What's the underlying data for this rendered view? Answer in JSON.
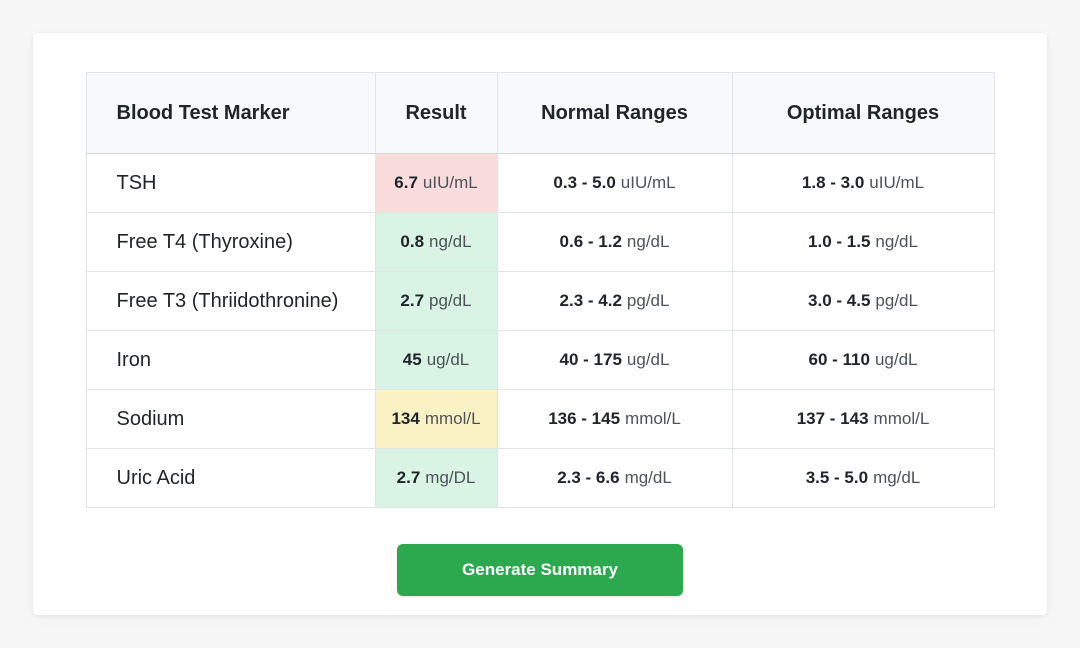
{
  "colors": {
    "page_background": "#f7f7f8",
    "card_background": "#ffffff",
    "header_background": "#f8f9fa",
    "accent_green": "#2ca84f",
    "result_high_bg": "#fbdcdc",
    "result_normal_bg": "#d9f4e4",
    "result_low_bg": "#faf2c5"
  },
  "table": {
    "headers": {
      "marker": "Blood Test Marker",
      "result": "Result",
      "normal": "Normal Ranges",
      "optimal": "Optimal Ranges"
    },
    "rows": [
      {
        "marker": "TSH",
        "result_value": "6.7",
        "result_unit": "uIU/mL",
        "status": "high",
        "normal_value": "0.3 - 5.0",
        "normal_unit": "uIU/mL",
        "optimal_value": "1.8 - 3.0",
        "optimal_unit": "uIU/mL"
      },
      {
        "marker": "Free T4 (Thyroxine)",
        "result_value": "0.8",
        "result_unit": "ng/dL",
        "status": "normal",
        "normal_value": "0.6 - 1.2",
        "normal_unit": "ng/dL",
        "optimal_value": "1.0 - 1.5",
        "optimal_unit": "ng/dL"
      },
      {
        "marker": "Free T3 (Thriidothronine)",
        "result_value": "2.7",
        "result_unit": "pg/dL",
        "status": "normal",
        "normal_value": "2.3 - 4.2",
        "normal_unit": "pg/dL",
        "optimal_value": "3.0 - 4.5",
        "optimal_unit": "pg/dL"
      },
      {
        "marker": "Iron",
        "result_value": "45",
        "result_unit": "ug/dL",
        "status": "normal",
        "normal_value": "40 - 175",
        "normal_unit": "ug/dL",
        "optimal_value": "60 - 110",
        "optimal_unit": "ug/dL"
      },
      {
        "marker": "Sodium",
        "result_value": "134",
        "result_unit": "mmol/L",
        "status": "low",
        "normal_value": "136 - 145",
        "normal_unit": "mmol/L",
        "optimal_value": "137 - 143",
        "optimal_unit": "mmol/L"
      },
      {
        "marker": "Uric Acid",
        "result_value": "2.7",
        "result_unit": "mg/DL",
        "status": "normal",
        "normal_value": "2.3 - 6.6",
        "normal_unit": "mg/dL",
        "optimal_value": "3.5 - 5.0",
        "optimal_unit": "mg/dL"
      }
    ]
  },
  "actions": {
    "generate_summary_label": "Generate Summary"
  }
}
